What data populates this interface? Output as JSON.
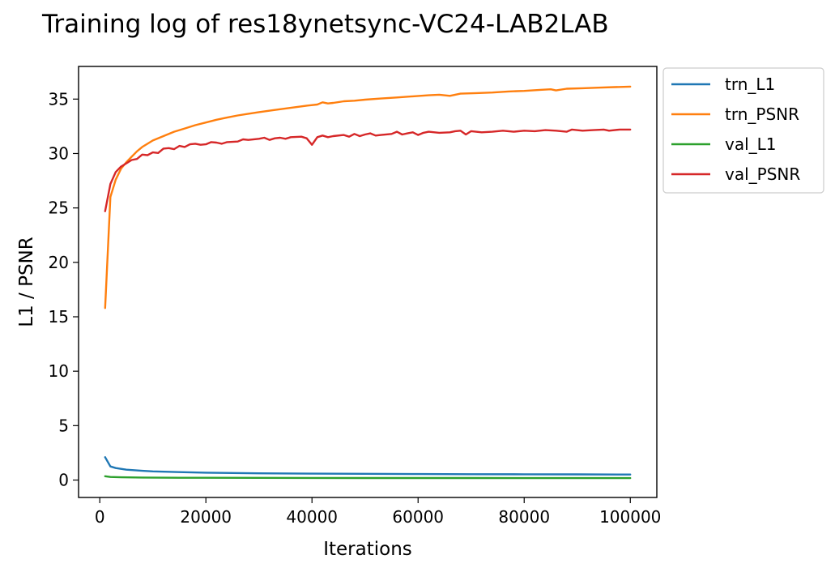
{
  "chart_data": {
    "type": "line",
    "title": "Training log of res18ynetsync-VC24-LAB2LAB",
    "xlabel": "Iterations",
    "ylabel": "L1 / PSNR",
    "xlim": [
      -4000,
      105000
    ],
    "ylim": [
      -1.6,
      38.0
    ],
    "xticks": [
      0,
      20000,
      40000,
      60000,
      80000,
      100000
    ],
    "xtick_labels": [
      "0",
      "20000",
      "40000",
      "60000",
      "80000",
      "100000"
    ],
    "yticks": [
      0,
      5,
      10,
      15,
      20,
      25,
      30,
      35
    ],
    "ytick_labels": [
      "0",
      "5",
      "10",
      "15",
      "20",
      "25",
      "30",
      "35"
    ],
    "grid": false,
    "legend_position": "outside-top-right",
    "series": [
      {
        "name": "trn_L1",
        "color": "#1f77b4",
        "points": [
          [
            1000,
            2.1
          ],
          [
            2000,
            1.25
          ],
          [
            3000,
            1.1
          ],
          [
            5000,
            0.95
          ],
          [
            8000,
            0.85
          ],
          [
            10000,
            0.8
          ],
          [
            15000,
            0.73
          ],
          [
            20000,
            0.68
          ],
          [
            30000,
            0.62
          ],
          [
            40000,
            0.59
          ],
          [
            50000,
            0.57
          ],
          [
            60000,
            0.55
          ],
          [
            70000,
            0.54
          ],
          [
            80000,
            0.53
          ],
          [
            90000,
            0.52
          ],
          [
            100000,
            0.51
          ]
        ]
      },
      {
        "name": "trn_PSNR",
        "color": "#ff7f0e",
        "points": [
          [
            1000,
            15.8
          ],
          [
            2000,
            26.0
          ],
          [
            3000,
            27.6
          ],
          [
            4000,
            28.6
          ],
          [
            5000,
            29.2
          ],
          [
            6000,
            29.7
          ],
          [
            7000,
            30.2
          ],
          [
            8000,
            30.6
          ],
          [
            9000,
            30.9
          ],
          [
            10000,
            31.2
          ],
          [
            12000,
            31.6
          ],
          [
            14000,
            32.0
          ],
          [
            16000,
            32.3
          ],
          [
            18000,
            32.6
          ],
          [
            20000,
            32.85
          ],
          [
            22000,
            33.1
          ],
          [
            24000,
            33.3
          ],
          [
            26000,
            33.5
          ],
          [
            28000,
            33.65
          ],
          [
            30000,
            33.8
          ],
          [
            33000,
            34.0
          ],
          [
            36000,
            34.2
          ],
          [
            39000,
            34.4
          ],
          [
            41000,
            34.5
          ],
          [
            42000,
            34.7
          ],
          [
            43000,
            34.6
          ],
          [
            44000,
            34.65
          ],
          [
            46000,
            34.8
          ],
          [
            48000,
            34.85
          ],
          [
            50000,
            34.95
          ],
          [
            53000,
            35.05
          ],
          [
            56000,
            35.15
          ],
          [
            59000,
            35.25
          ],
          [
            62000,
            35.35
          ],
          [
            64000,
            35.4
          ],
          [
            66000,
            35.3
          ],
          [
            68000,
            35.5
          ],
          [
            71000,
            35.55
          ],
          [
            74000,
            35.6
          ],
          [
            77000,
            35.7
          ],
          [
            80000,
            35.75
          ],
          [
            83000,
            35.85
          ],
          [
            85000,
            35.9
          ],
          [
            86000,
            35.8
          ],
          [
            88000,
            35.95
          ],
          [
            91000,
            36.0
          ],
          [
            94000,
            36.05
          ],
          [
            97000,
            36.1
          ],
          [
            100000,
            36.15
          ]
        ]
      },
      {
        "name": "val_L1",
        "color": "#2ca02c",
        "points": [
          [
            1000,
            0.35
          ],
          [
            2000,
            0.28
          ],
          [
            4000,
            0.25
          ],
          [
            8000,
            0.23
          ],
          [
            15000,
            0.21
          ],
          [
            30000,
            0.2
          ],
          [
            50000,
            0.19
          ],
          [
            70000,
            0.19
          ],
          [
            100000,
            0.18
          ]
        ]
      },
      {
        "name": "val_PSNR",
        "color": "#d62728",
        "points": [
          [
            1000,
            24.7
          ],
          [
            2000,
            27.2
          ],
          [
            3000,
            28.3
          ],
          [
            4000,
            28.8
          ],
          [
            5000,
            29.1
          ],
          [
            6000,
            29.4
          ],
          [
            7000,
            29.5
          ],
          [
            8000,
            29.9
          ],
          [
            9000,
            29.85
          ],
          [
            10000,
            30.1
          ],
          [
            11000,
            30.05
          ],
          [
            12000,
            30.45
          ],
          [
            13000,
            30.5
          ],
          [
            14000,
            30.4
          ],
          [
            15000,
            30.7
          ],
          [
            16000,
            30.6
          ],
          [
            17000,
            30.85
          ],
          [
            18000,
            30.9
          ],
          [
            19000,
            30.8
          ],
          [
            20000,
            30.85
          ],
          [
            21000,
            31.05
          ],
          [
            22000,
            31.0
          ],
          [
            23000,
            30.9
          ],
          [
            24000,
            31.05
          ],
          [
            26000,
            31.1
          ],
          [
            27000,
            31.3
          ],
          [
            28000,
            31.25
          ],
          [
            30000,
            31.35
          ],
          [
            31000,
            31.45
          ],
          [
            32000,
            31.25
          ],
          [
            33000,
            31.4
          ],
          [
            34000,
            31.45
          ],
          [
            35000,
            31.35
          ],
          [
            36000,
            31.5
          ],
          [
            38000,
            31.55
          ],
          [
            39000,
            31.4
          ],
          [
            40000,
            30.8
          ],
          [
            41000,
            31.5
          ],
          [
            42000,
            31.65
          ],
          [
            43000,
            31.5
          ],
          [
            44000,
            31.6
          ],
          [
            46000,
            31.7
          ],
          [
            47000,
            31.55
          ],
          [
            48000,
            31.8
          ],
          [
            49000,
            31.6
          ],
          [
            50000,
            31.75
          ],
          [
            51000,
            31.85
          ],
          [
            52000,
            31.65
          ],
          [
            53000,
            31.7
          ],
          [
            55000,
            31.8
          ],
          [
            56000,
            32.0
          ],
          [
            57000,
            31.75
          ],
          [
            58000,
            31.85
          ],
          [
            59000,
            31.95
          ],
          [
            60000,
            31.7
          ],
          [
            61000,
            31.9
          ],
          [
            62000,
            32.0
          ],
          [
            64000,
            31.9
          ],
          [
            66000,
            31.95
          ],
          [
            67000,
            32.05
          ],
          [
            68000,
            32.1
          ],
          [
            69000,
            31.75
          ],
          [
            70000,
            32.05
          ],
          [
            72000,
            31.95
          ],
          [
            74000,
            32.0
          ],
          [
            76000,
            32.1
          ],
          [
            78000,
            32.0
          ],
          [
            80000,
            32.1
          ],
          [
            82000,
            32.05
          ],
          [
            84000,
            32.15
          ],
          [
            86000,
            32.1
          ],
          [
            88000,
            32.0
          ],
          [
            89000,
            32.2
          ],
          [
            91000,
            32.1
          ],
          [
            93000,
            32.15
          ],
          [
            95000,
            32.2
          ],
          [
            96000,
            32.1
          ],
          [
            98000,
            32.2
          ],
          [
            100000,
            32.2
          ]
        ]
      }
    ]
  }
}
